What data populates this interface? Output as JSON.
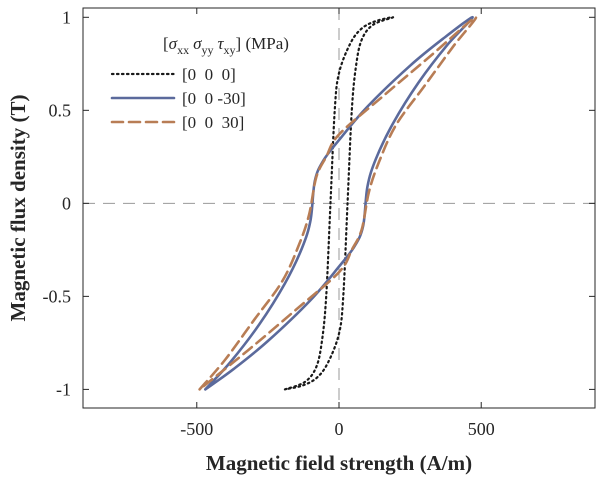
{
  "chart_data": {
    "type": "line",
    "xlabel": "Magnetic field strength (A/m)",
    "ylabel": "Magnetic flux density (T)",
    "xlim": [
      -900,
      900
    ],
    "ylim": [
      -1.1,
      1.05
    ],
    "xticks": [
      -500,
      0,
      500
    ],
    "xtick_labels": [
      "-500",
      "0",
      "500"
    ],
    "yticks": [
      -1,
      -0.5,
      0,
      0.5,
      1
    ],
    "ytick_labels": [
      "-1",
      "-0.5",
      "0",
      "0.5",
      "1"
    ],
    "grid": false,
    "zero_lines": true,
    "legend": {
      "placement": "top-left",
      "title_parts": [
        "[",
        "σ",
        "xx",
        "σ",
        "yy",
        "τ",
        "xy",
        "] (MPa)"
      ]
    },
    "series": [
      {
        "name": "[0  0  0]",
        "color": "#1a1a1a",
        "style": "dotted",
        "x": [
          -190,
          -120,
          -80,
          -60,
          -45,
          -30,
          -15,
          0,
          40,
          80,
          130,
          190,
          120,
          80,
          60,
          45,
          30,
          15,
          0,
          -40,
          -80,
          -130,
          -190
        ],
        "y": [
          -1.0,
          -0.96,
          -0.88,
          -0.74,
          -0.5,
          0.0,
          0.5,
          0.7,
          0.86,
          0.94,
          0.98,
          1.0,
          0.96,
          0.88,
          0.74,
          0.5,
          0.0,
          -0.5,
          -0.7,
          -0.86,
          -0.94,
          -0.98,
          -1.0
        ]
      },
      {
        "name": "[0  0 -30]",
        "color": "#5b6a9c",
        "style": "solid",
        "x": [
          -470,
          -380,
          -280,
          -190,
          -130,
          -100,
          -85,
          -55,
          0,
          100,
          250,
          370,
          470,
          380,
          280,
          190,
          130,
          100,
          85,
          55,
          0,
          -100,
          -250,
          -370,
          -470
        ],
        "y": [
          -1.0,
          -0.85,
          -0.65,
          -0.43,
          -0.24,
          -0.09,
          0.12,
          0.23,
          0.34,
          0.52,
          0.74,
          0.89,
          1.0,
          0.85,
          0.65,
          0.43,
          0.24,
          0.09,
          -0.12,
          -0.23,
          -0.34,
          -0.52,
          -0.74,
          -0.89,
          -1.0
        ]
      },
      {
        "name": "[0  0  30]",
        "color": "#b87d55",
        "style": "dashed",
        "x": [
          -490,
          -400,
          -300,
          -200,
          -140,
          -105,
          -80,
          -45,
          0,
          150,
          320,
          480,
          400,
          300,
          200,
          140,
          105,
          80,
          45,
          0,
          -150,
          -320,
          -490
        ],
        "y": [
          -1.0,
          -0.84,
          -0.63,
          -0.42,
          -0.22,
          -0.06,
          0.14,
          0.25,
          0.37,
          0.57,
          0.79,
          1.0,
          0.84,
          0.63,
          0.42,
          0.22,
          0.06,
          -0.14,
          -0.25,
          -0.37,
          -0.57,
          -0.79,
          -1.0
        ]
      }
    ]
  }
}
